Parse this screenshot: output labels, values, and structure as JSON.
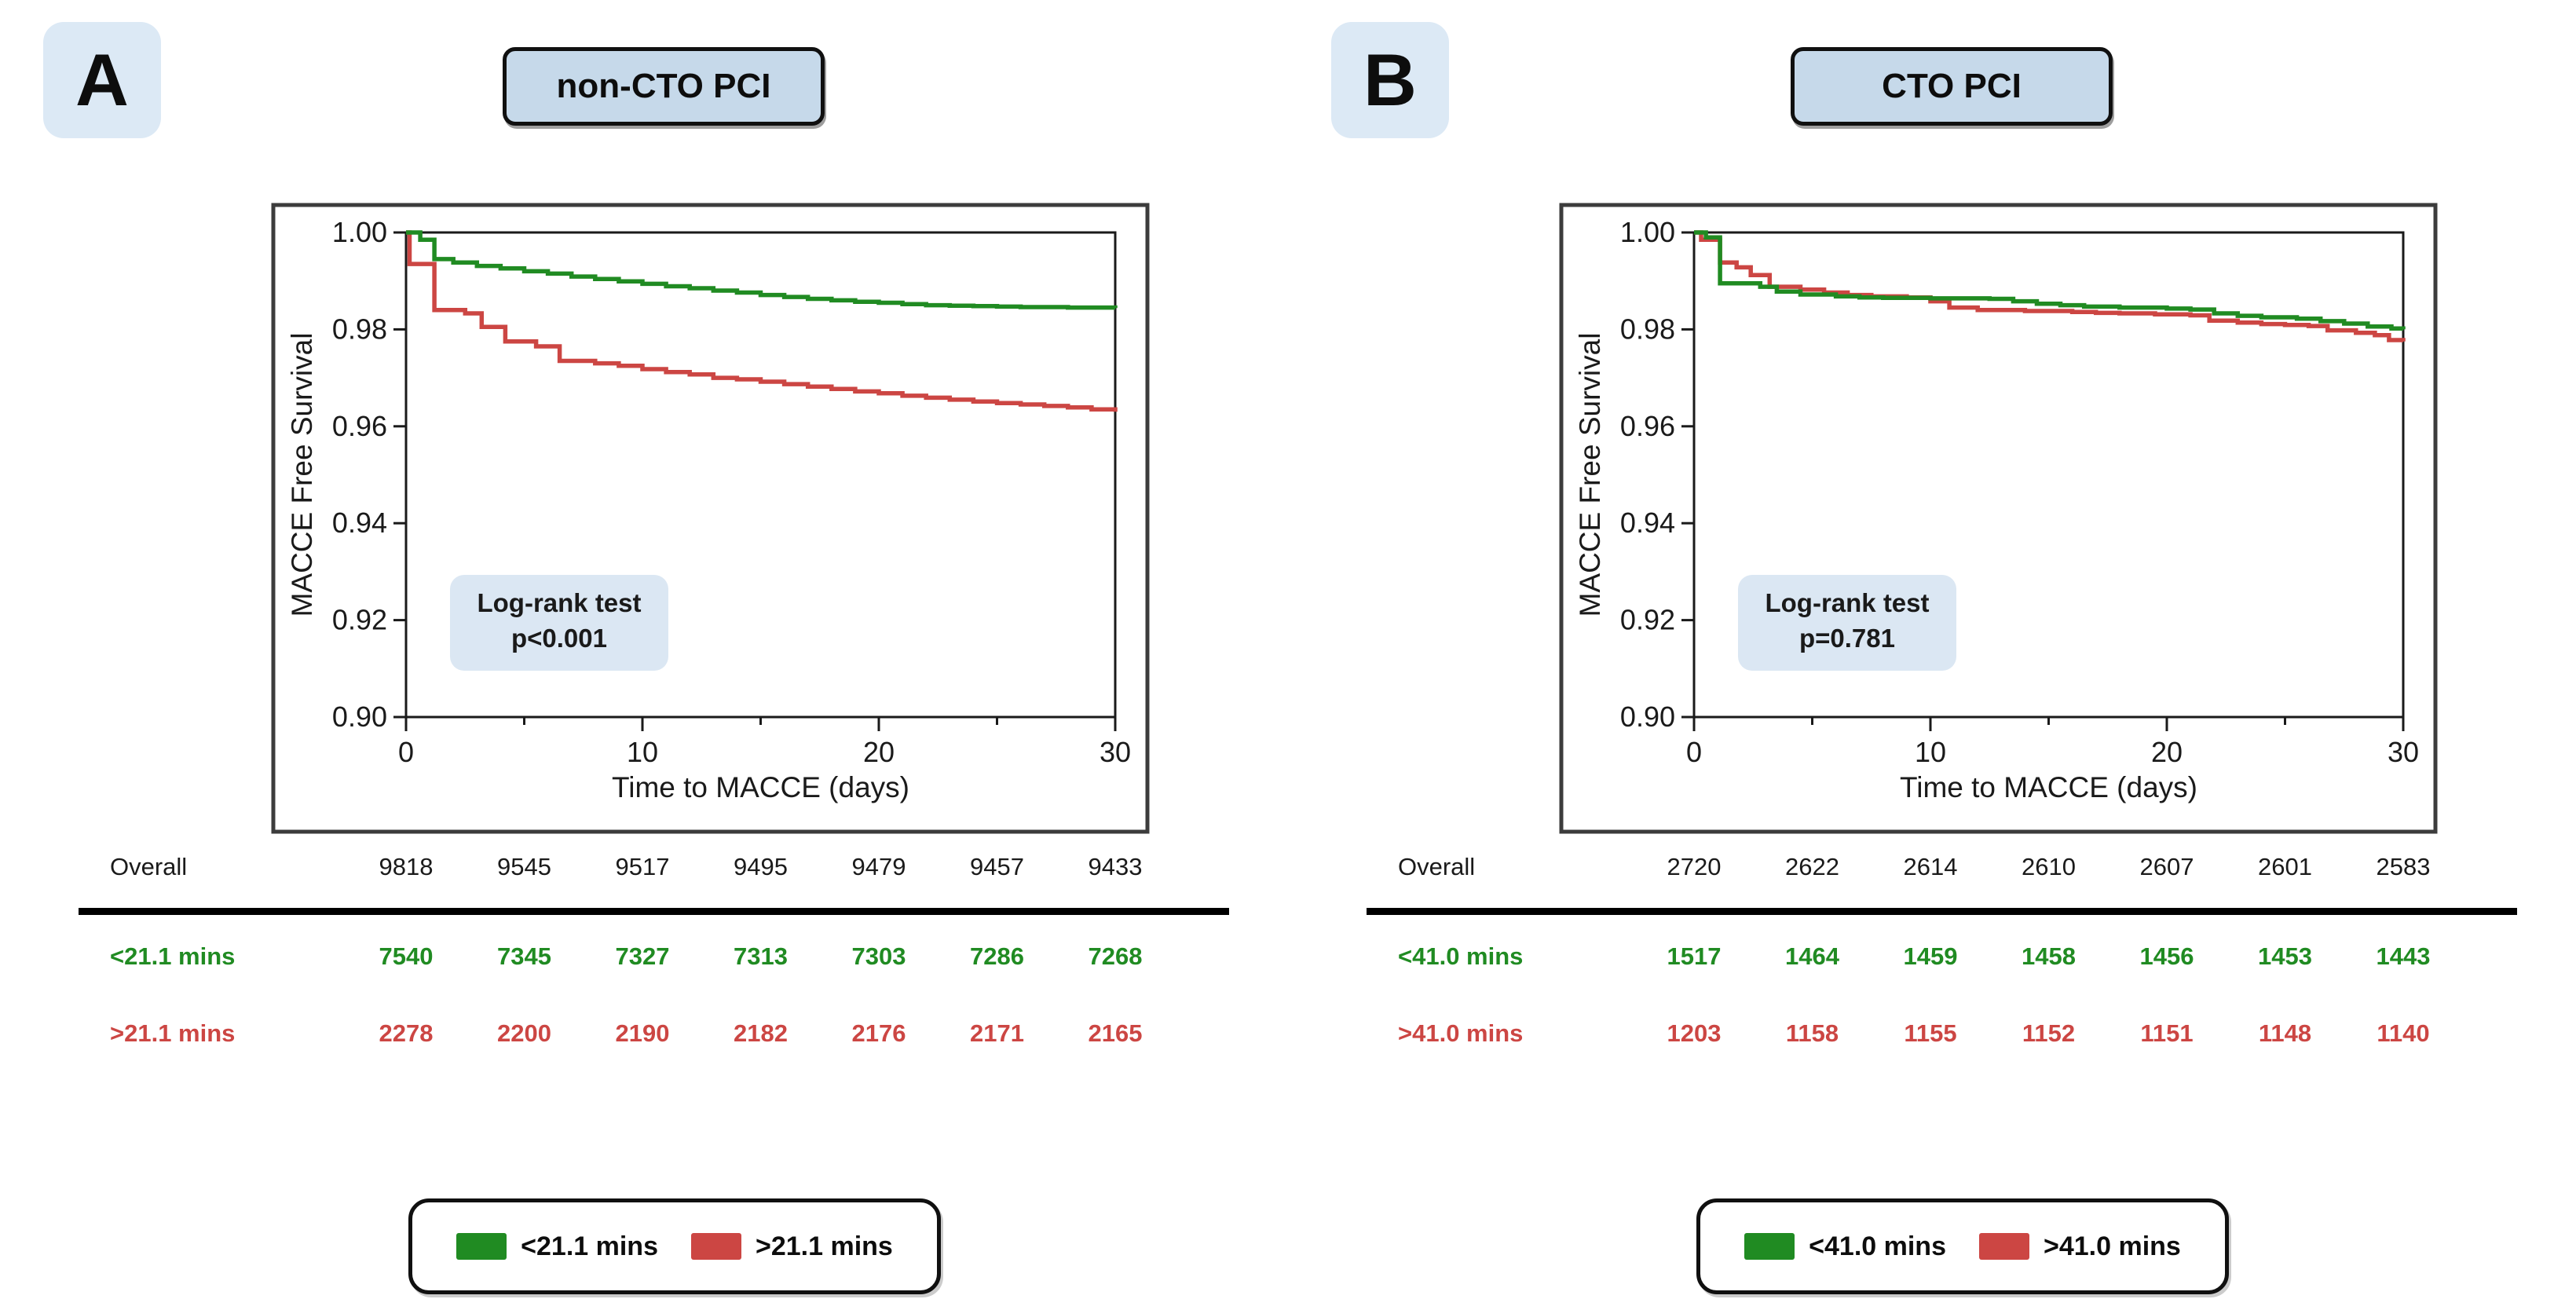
{
  "figure": {
    "accent_colors": {
      "green": "#208b22",
      "red": "#cc4643",
      "light_blue_badge": "#dce9f5",
      "light_blue_title": "#c6d9ea",
      "light_blue_annotation": "#dbe7f3"
    },
    "panels": [
      {
        "label": "A",
        "title": "non-CTO PCI"
      },
      {
        "label": "B",
        "title": "CTO PCI"
      }
    ]
  },
  "chart_data": [
    {
      "type": "line",
      "subtype": "kaplan-meier-step",
      "title": "non-CTO PCI",
      "xlabel": "Time to MACCE (days)",
      "ylabel": "MACCE Free Survival",
      "xlim": [
        0,
        30
      ],
      "ylim": [
        0.9,
        1.0
      ],
      "xticks_major": [
        0,
        10,
        20,
        30
      ],
      "xticks_minor": [
        5,
        15,
        25
      ],
      "yticks": [
        1.0,
        0.98,
        0.96,
        0.94,
        0.92,
        0.9
      ],
      "ytick_labels": [
        "1.00",
        "0.98",
        "0.96",
        "0.94",
        "0.92",
        "0.90"
      ],
      "grid": false,
      "legend_position": "bottom",
      "annotation": {
        "line1": "Log-rank test",
        "line2": "p<0.001"
      },
      "series": [
        {
          "name": "<21.1 mins",
          "color": "#208b22",
          "points": [
            [
              0,
              1.0
            ],
            [
              0.6,
              0.9985
            ],
            [
              1.2,
              0.9945
            ],
            [
              2,
              0.9938
            ],
            [
              3,
              0.9931
            ],
            [
              4,
              0.9926
            ],
            [
              5,
              0.992
            ],
            [
              6,
              0.9915
            ],
            [
              7,
              0.9909
            ],
            [
              8,
              0.9904
            ],
            [
              9,
              0.9899
            ],
            [
              10,
              0.9894
            ],
            [
              11,
              0.9889
            ],
            [
              12,
              0.9885
            ],
            [
              13,
              0.988
            ],
            [
              14,
              0.9876
            ],
            [
              15,
              0.9871
            ],
            [
              16,
              0.9867
            ],
            [
              17,
              0.9863
            ],
            [
              18,
              0.986
            ],
            [
              19,
              0.9857
            ],
            [
              20,
              0.9855
            ],
            [
              21,
              0.9852
            ],
            [
              22,
              0.985
            ],
            [
              23,
              0.9849
            ],
            [
              24,
              0.9848
            ],
            [
              25,
              0.9847
            ],
            [
              26,
              0.9846
            ],
            [
              27,
              0.9846
            ],
            [
              28,
              0.9845
            ],
            [
              29,
              0.9845
            ],
            [
              30,
              0.9844
            ]
          ]
        },
        {
          "name": ">21.1 mins",
          "color": "#cc4643",
          "points": [
            [
              0,
              1.0
            ],
            [
              0.15,
              0.9935
            ],
            [
              1.2,
              0.984
            ],
            [
              2.5,
              0.9833
            ],
            [
              3.2,
              0.9805
            ],
            [
              4.2,
              0.9775
            ],
            [
              5.5,
              0.9765
            ],
            [
              6.5,
              0.9735
            ],
            [
              8,
              0.973
            ],
            [
              9,
              0.9725
            ],
            [
              10,
              0.9718
            ],
            [
              11,
              0.9712
            ],
            [
              12,
              0.9707
            ],
            [
              13,
              0.97
            ],
            [
              14,
              0.9697
            ],
            [
              15,
              0.9692
            ],
            [
              16,
              0.9687
            ],
            [
              17,
              0.9682
            ],
            [
              18,
              0.9677
            ],
            [
              19,
              0.9672
            ],
            [
              20,
              0.9668
            ],
            [
              21,
              0.9663
            ],
            [
              22,
              0.9659
            ],
            [
              23,
              0.9655
            ],
            [
              24,
              0.9651
            ],
            [
              25,
              0.9648
            ],
            [
              26,
              0.9645
            ],
            [
              27,
              0.9642
            ],
            [
              28,
              0.9639
            ],
            [
              29,
              0.9635
            ],
            [
              30,
              0.963
            ]
          ]
        }
      ],
      "risk_table": {
        "timepoints": [
          0,
          5,
          10,
          15,
          20,
          25,
          30
        ],
        "rows": [
          {
            "label": "Overall",
            "color": "#1a1a1a",
            "bold": false,
            "counts": [
              9818,
              9545,
              9517,
              9495,
              9479,
              9457,
              9433
            ]
          },
          {
            "label": "<21.1 mins",
            "color": "#208b22",
            "bold": true,
            "counts": [
              7540,
              7345,
              7327,
              7313,
              7303,
              7286,
              7268
            ]
          },
          {
            "label": ">21.1 mins",
            "color": "#cc4643",
            "bold": true,
            "counts": [
              2278,
              2200,
              2190,
              2182,
              2176,
              2171,
              2165
            ]
          }
        ]
      }
    },
    {
      "type": "line",
      "subtype": "kaplan-meier-step",
      "title": "CTO PCI",
      "xlabel": "Time to MACCE (days)",
      "ylabel": "MACCE Free Survival",
      "xlim": [
        0,
        30
      ],
      "ylim": [
        0.9,
        1.0
      ],
      "xticks_major": [
        0,
        10,
        20,
        30
      ],
      "xticks_minor": [
        5,
        15,
        25
      ],
      "yticks": [
        1.0,
        0.98,
        0.96,
        0.94,
        0.92,
        0.9
      ],
      "ytick_labels": [
        "1.00",
        "0.98",
        "0.96",
        "0.94",
        "0.92",
        "0.90"
      ],
      "grid": false,
      "legend_position": "bottom",
      "annotation": {
        "line1": "Log-rank test",
        "line2": "p=0.781"
      },
      "series": [
        {
          "name": "<41.0 mins",
          "color": "#208b22",
          "points": [
            [
              0,
              1.0
            ],
            [
              0.5,
              0.999
            ],
            [
              1.1,
              0.9895
            ],
            [
              2.8,
              0.9888
            ],
            [
              3.5,
              0.9878
            ],
            [
              4.5,
              0.9872
            ],
            [
              6,
              0.9868
            ],
            [
              7,
              0.9866
            ],
            [
              8,
              0.9865
            ],
            [
              10,
              0.9864
            ],
            [
              12.5,
              0.9863
            ],
            [
              13.5,
              0.9858
            ],
            [
              14.5,
              0.9853
            ],
            [
              15.5,
              0.985
            ],
            [
              16.5,
              0.9847
            ],
            [
              18,
              0.9845
            ],
            [
              20,
              0.9843
            ],
            [
              21,
              0.9841
            ],
            [
              22,
              0.9833
            ],
            [
              23,
              0.9828
            ],
            [
              24,
              0.9825
            ],
            [
              25.5,
              0.9822
            ],
            [
              26.5,
              0.9817
            ],
            [
              27.5,
              0.9812
            ],
            [
              28.5,
              0.9806
            ],
            [
              29.5,
              0.9802
            ],
            [
              30,
              0.98
            ]
          ]
        },
        {
          "name": ">41.0 mins",
          "color": "#cc4643",
          "points": [
            [
              0,
              1.0
            ],
            [
              0.3,
              0.9985
            ],
            [
              1.1,
              0.9938
            ],
            [
              1.8,
              0.9928
            ],
            [
              2.4,
              0.9912
            ],
            [
              3.2,
              0.9888
            ],
            [
              4.5,
              0.9882
            ],
            [
              5.5,
              0.9876
            ],
            [
              6.5,
              0.9871
            ],
            [
              7.5,
              0.9868
            ],
            [
              9,
              0.9866
            ],
            [
              10,
              0.9858
            ],
            [
              10.8,
              0.9845
            ],
            [
              12,
              0.984
            ],
            [
              14,
              0.9838
            ],
            [
              16,
              0.9836
            ],
            [
              17,
              0.9834
            ],
            [
              18,
              0.9833
            ],
            [
              19.5,
              0.9831
            ],
            [
              21,
              0.9829
            ],
            [
              21.8,
              0.9818
            ],
            [
              23,
              0.9814
            ],
            [
              24,
              0.9811
            ],
            [
              25,
              0.9809
            ],
            [
              26,
              0.9807
            ],
            [
              26.8,
              0.9798
            ],
            [
              28,
              0.9793
            ],
            [
              28.8,
              0.9788
            ],
            [
              29.4,
              0.9778
            ],
            [
              30,
              0.9775
            ]
          ]
        }
      ],
      "risk_table": {
        "timepoints": [
          0,
          5,
          10,
          15,
          20,
          25,
          30
        ],
        "rows": [
          {
            "label": "Overall",
            "color": "#1a1a1a",
            "bold": false,
            "counts": [
              2720,
              2622,
              2614,
              2610,
              2607,
              2601,
              2583
            ]
          },
          {
            "label": "<41.0 mins",
            "color": "#208b22",
            "bold": true,
            "counts": [
              1517,
              1464,
              1459,
              1458,
              1456,
              1453,
              1443
            ]
          },
          {
            "label": ">41.0 mins",
            "color": "#cc4643",
            "bold": true,
            "counts": [
              1203,
              1158,
              1155,
              1152,
              1151,
              1148,
              1140
            ]
          }
        ]
      }
    }
  ]
}
